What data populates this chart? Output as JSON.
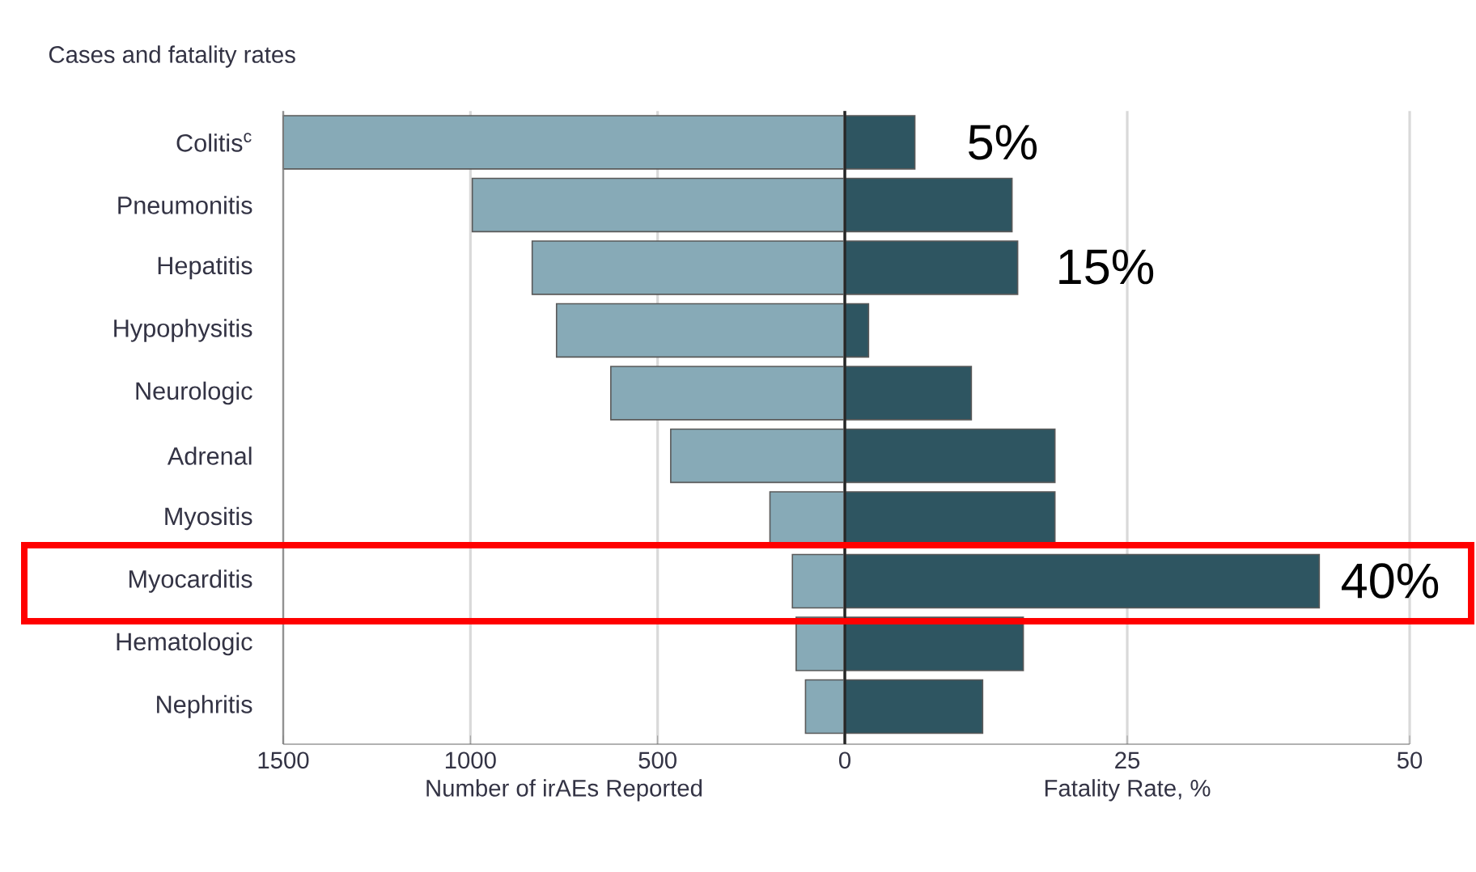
{
  "chart_data": [
    {
      "type": "bar",
      "orientation": "horizontal",
      "title": "Cases and fatality rates",
      "xlabel": "Number of irAEs Reported",
      "categories": [
        "Colitis$^{c}$",
        "Pneumonitis",
        "Hepatitis",
        "Hypophysitis",
        "Neurologic",
        "Adrenal",
        "Myositis",
        "Myocarditis",
        "Hematologic",
        "Nephritis"
      ],
      "values": [
        1500,
        995,
        835,
        770,
        625,
        465,
        200,
        140,
        130,
        105
      ],
      "color": "#87aab7",
      "xlim": [
        1500,
        0
      ],
      "xticks": [
        1500,
        1000,
        500,
        0
      ],
      "grid": "x"
    },
    {
      "type": "bar",
      "orientation": "horizontal",
      "xlabel": "Fatality Rate, %",
      "values": [
        6.2,
        14.8,
        15.3,
        2.1,
        11.2,
        18.6,
        18.6,
        42,
        15.8,
        12.2
      ],
      "color": "#2e5561",
      "categories": [
        null,
        null,
        null,
        null,
        null,
        null,
        null,
        null,
        null,
        null
      ],
      "xlim": [
        0,
        50
      ],
      "xticks": [
        {
          "value": 0,
          "label": null
        },
        25,
        50
      ],
      "grid": "x",
      "tick_labels": "x",
      "annotations": [
        "5%",
        "15%",
        "40%"
      ]
    }
  ]
}
